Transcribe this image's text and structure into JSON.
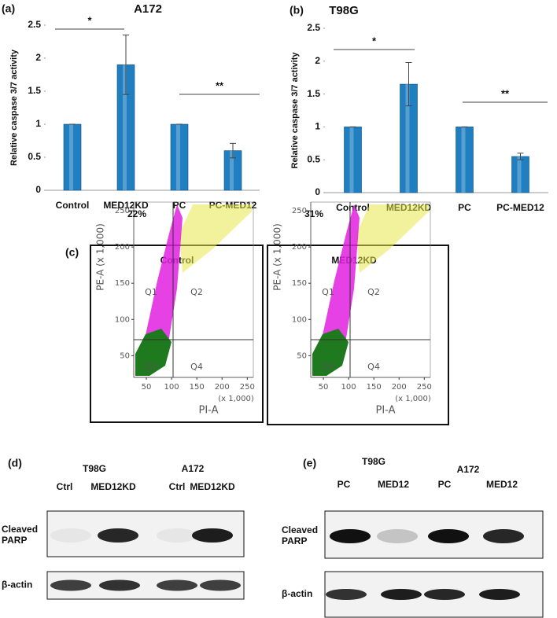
{
  "chart_data": [
    {
      "type": "bar",
      "panel": "(a)",
      "title": "A172",
      "y_label": "Relative caspase 3/7 activity",
      "categories": [
        "Control",
        "MED12KD",
        "PC",
        "PC-MED12"
      ],
      "values": [
        1,
        1.9,
        1,
        0.6
      ],
      "errors": [
        0,
        0.45,
        0,
        0.11
      ],
      "color": "#1f7fc0",
      "ylim": [
        0,
        2.5
      ],
      "yticks": [
        0,
        0.5,
        1,
        1.5,
        2,
        2.5
      ],
      "significance": [
        "*",
        "**"
      ]
    },
    {
      "type": "bar",
      "panel": "(b)",
      "title": "T98G",
      "y_label": "Relative caspase 3/7 activity",
      "categories": [
        "Control",
        "MED12KD",
        "PC",
        "PC-MED12"
      ],
      "values": [
        1,
        1.65,
        1,
        0.55
      ],
      "errors": [
        0,
        0.33,
        0,
        0.05
      ],
      "color": "#1f7fc0",
      "ylim": [
        0,
        2.5
      ],
      "yticks": [
        0,
        0.5,
        1,
        1.5,
        2,
        2.5
      ],
      "significance": [
        "*",
        "**"
      ]
    },
    {
      "type": "scatter",
      "panel": "(c)",
      "title": "Control",
      "annotation": "22%",
      "x_label": "PI-A",
      "x_unit": "(x 1,000)",
      "y_label": "PE-A (x 1,000)",
      "quadrants": [
        "Q1",
        "Q2",
        "Q3",
        "Q4"
      ],
      "xlim": [
        25,
        262
      ],
      "xticks": [
        50,
        100,
        150,
        200,
        250
      ],
      "ylim": [
        20,
        262
      ],
      "yticks": [
        50,
        100,
        150,
        200,
        250
      ]
    },
    {
      "type": "scatter",
      "title": "MED12KD",
      "annotation": "31%",
      "x_label": "PI-A",
      "x_unit": "(x 1,000)",
      "y_label": "PE-A (x 1,000)",
      "quadrants": [
        "Q1",
        "Q2",
        "Q3",
        "Q4"
      ],
      "xlim": [
        25,
        262
      ],
      "xticks": [
        50,
        100,
        150,
        200,
        250
      ],
      "ylim": [
        20,
        262
      ],
      "yticks": [
        50,
        100,
        150,
        200,
        250
      ]
    }
  ],
  "blots": [
    {
      "panel": "(d)",
      "groups": [
        "T98G",
        "A172"
      ],
      "lanes": [
        "Ctrl",
        "MED12KD",
        "Ctrl",
        "MED12KD"
      ],
      "rows": [
        [
          "Cleaved",
          "PARP"
        ],
        [
          "β-actin"
        ]
      ]
    },
    {
      "panel": "(e)",
      "groups": [
        "T98G",
        "A172"
      ],
      "lanes": [
        "PC",
        "MED12",
        "PC",
        "MED12"
      ],
      "rows": [
        [
          "Cleaved",
          "PARP"
        ],
        [
          "β-actin"
        ]
      ]
    }
  ]
}
